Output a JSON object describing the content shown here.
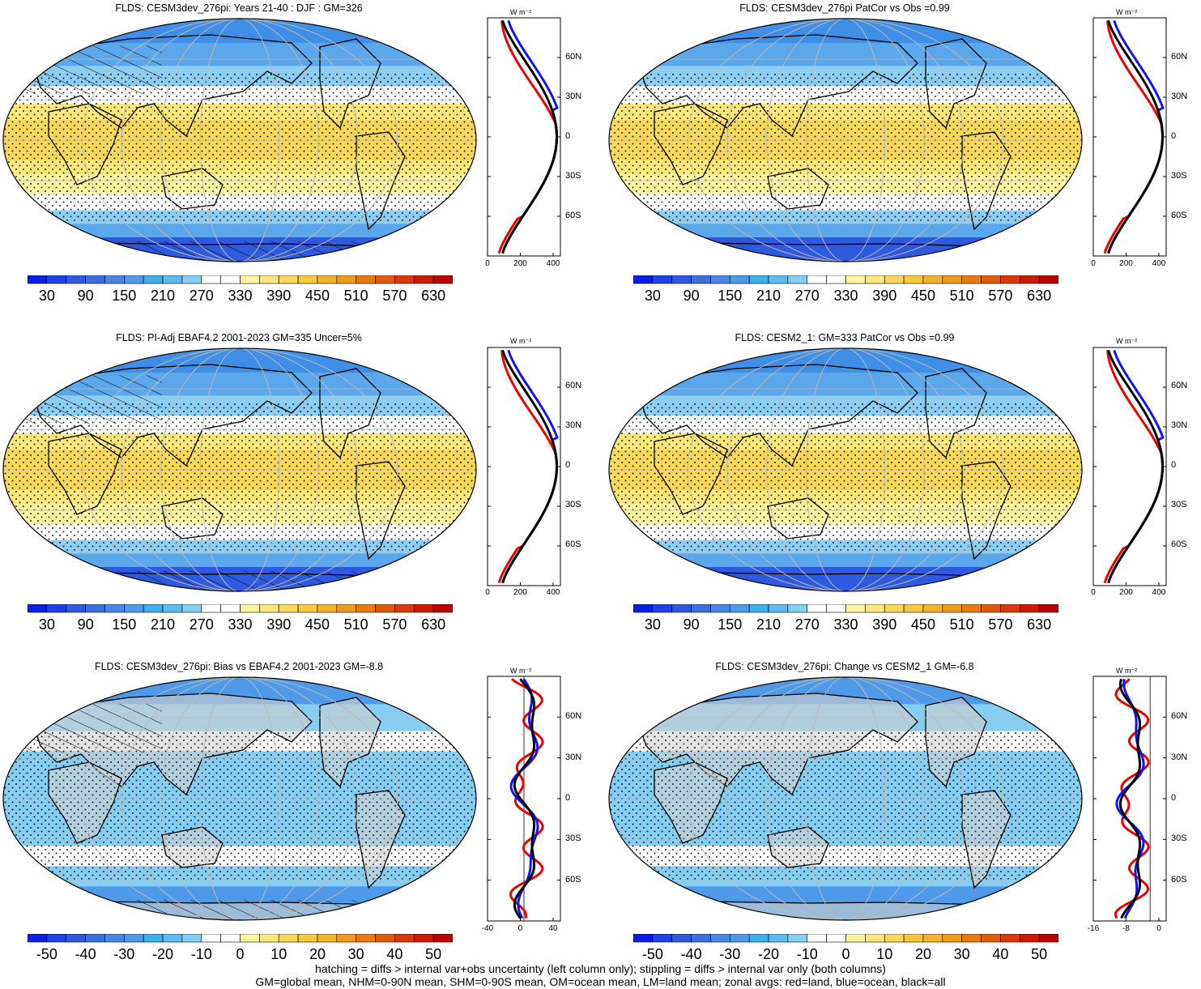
{
  "panels": [
    {
      "title": "FLDS: CESM3dev_276pi: Years 21-40 : DJF : GM=326",
      "kind": "abs",
      "zxticks": [
        "0",
        "200",
        "400"
      ]
    },
    {
      "title": "FLDS: CESM3dev_276pi PatCor vs Obs =0.99",
      "kind": "abs",
      "zxticks": [
        "0",
        "200",
        "400"
      ]
    },
    {
      "title": "FLDS: PI-Adj EBAF4.2 2001-2023 GM=335 Uncer=5%",
      "kind": "abs",
      "zxticks": [
        "0",
        "200",
        "400"
      ]
    },
    {
      "title": "FLDS: CESM2_1: GM=333 PatCor vs Obs =0.99",
      "kind": "abs",
      "zxticks": [
        "0",
        "200",
        "400"
      ]
    },
    {
      "title": "FLDS: CESM3dev_276pi: Bias vs EBAF4.2 2001-2023 GM=-8.8",
      "kind": "diff",
      "zxticks": [
        "-40",
        "0",
        "40"
      ]
    },
    {
      "title": "FLDS: CESM3dev_276pi: Change vs CESM2_1 GM=-6.8",
      "kind": "diff",
      "zxticks": [
        "-16",
        "-8",
        "0"
      ]
    }
  ],
  "units": "W m⁻²",
  "lat_ticks": [
    "60N",
    "30N",
    "0",
    "30S",
    "60S"
  ],
  "abs_colorbar": {
    "labels": [
      "30",
      "90",
      "150",
      "210",
      "270",
      "330",
      "390",
      "450",
      "510",
      "570",
      "630"
    ],
    "colors": [
      "#0a1ee6",
      "#2040e8",
      "#2f5ae0",
      "#3a6fe0",
      "#4a86e6",
      "#4f9ae8",
      "#3fb0ee",
      "#5cbcf0",
      "#86cdf2",
      "#ffffff",
      "#ffffff",
      "#fff4a0",
      "#fbe77a",
      "#f8d85a",
      "#f6c83e",
      "#f2b32a",
      "#ee9a1c",
      "#e87a12",
      "#e05a0c",
      "#d83a08",
      "#cc1c06",
      "#b80404"
    ]
  },
  "diff_colorbar": {
    "labels": [
      "-50",
      "-40",
      "-30",
      "-20",
      "-10",
      "0",
      "10",
      "20",
      "30",
      "40",
      "50"
    ],
    "colors": [
      "#0a1ee6",
      "#2040e8",
      "#2f5ae0",
      "#3a6fe0",
      "#4a86e6",
      "#4f9ae8",
      "#3fb0ee",
      "#5cbcf0",
      "#86cdf2",
      "#ffffff",
      "#ffffff",
      "#fff4a0",
      "#fbe77a",
      "#f8d85a",
      "#f6c83e",
      "#f2b32a",
      "#ee9a1c",
      "#e87a12",
      "#e05a0c",
      "#d83a08",
      "#cc1c06",
      "#b80404"
    ]
  },
  "zonal_legend": {
    "land": "red",
    "ocean": "blue",
    "all": "black"
  },
  "footer": {
    "line1": "hatching = diffs > internal var+obs uncertainty (left column only); stippling = diffs > internal var only (both columns)",
    "line2": "GM=global mean, NHM=0-90N mean, SHM=0-90S mean, OM=ocean mean, LM=land mean; zonal avgs: red=land, blue=ocean, black=all"
  }
}
